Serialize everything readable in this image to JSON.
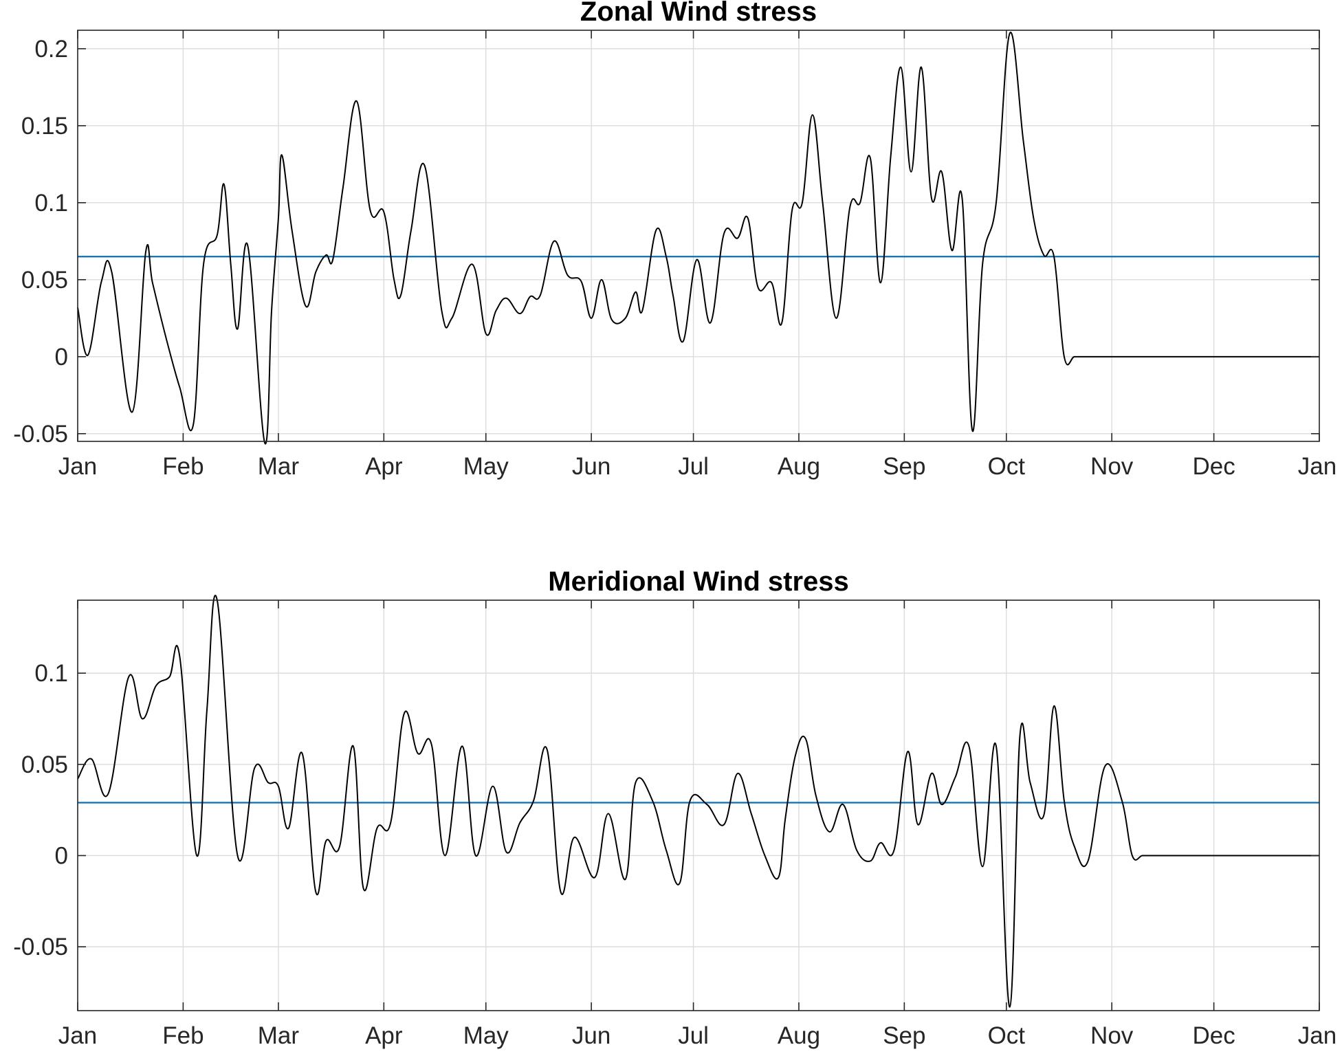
{
  "chart_data": [
    {
      "type": "line",
      "title": "Zonal Wind stress",
      "xlabel": "",
      "ylabel": "",
      "xlim": [
        0,
        365
      ],
      "ylim": [
        -0.055,
        0.212
      ],
      "xticks": [
        0,
        31,
        59,
        90,
        120,
        151,
        181,
        212,
        243,
        273,
        304,
        334,
        365
      ],
      "xtick_labels": [
        "Jan",
        "Feb",
        "Mar",
        "Apr",
        "May",
        "Jun",
        "Jul",
        "Aug",
        "Sep",
        "Oct",
        "Nov",
        "Dec",
        "Jan"
      ],
      "yticks": [
        -0.05,
        0,
        0.05,
        0.1,
        0.15,
        0.2
      ],
      "ytick_labels": [
        "-0.05",
        "0",
        "0.05",
        "0.1",
        "0.15",
        "0.2"
      ],
      "grid": true,
      "mean_value": 0.065,
      "mean_color": "#0072bd",
      "line_color": "#000000",
      "series": [
        {
          "x": [
            0,
            3,
            7,
            10,
            16,
            20,
            22,
            26,
            30,
            34,
            37,
            41,
            43,
            45,
            47,
            50,
            55,
            57,
            59,
            60,
            63,
            67,
            70,
            73,
            75,
            78,
            82,
            86,
            90,
            93,
            95,
            98,
            102,
            107,
            110,
            116,
            120,
            123,
            126,
            130,
            133,
            136,
            140,
            144,
            148,
            151,
            154,
            157,
            161,
            164,
            166,
            170,
            173,
            175,
            178,
            182,
            186,
            190,
            194,
            197,
            200,
            204,
            207,
            210,
            213,
            216,
            219,
            223,
            227,
            230,
            233,
            236,
            239,
            242,
            245,
            248,
            251,
            254,
            257,
            260,
            263,
            266,
            270,
            274,
            278,
            281,
            284,
            287,
            290,
            293,
            296,
            300,
            303,
            305,
            308,
            311,
            313,
            315,
            317,
            319,
            321,
            323,
            325,
            328,
            331,
            334,
            337,
            341,
            346,
            350,
            355,
            360,
            365
          ],
          "y": [
            0.032,
            0.001,
            0.049,
            0.055,
            -0.036,
            0.068,
            0.048,
            0.012,
            -0.02,
            -0.044,
            0.06,
            0.079,
            0.112,
            0.06,
            0.018,
            0.072,
            -0.056,
            0.03,
            0.09,
            0.131,
            0.082,
            0.033,
            0.055,
            0.066,
            0.063,
            0.11,
            0.166,
            0.095,
            0.094,
            0.05,
            0.04,
            0.082,
            0.124,
            0.03,
            0.025,
            0.06,
            0.015,
            0.03,
            0.038,
            0.028,
            0.039,
            0.04,
            0.075,
            0.053,
            0.049,
            0.025,
            0.05,
            0.024,
            0.025,
            0.042,
            0.03,
            0.082,
            0.065,
            0.04,
            0.01,
            0.063,
            0.022,
            0.08,
            0.077,
            0.09,
            0.045,
            0.048,
            0.022,
            0.095,
            0.1,
            0.157,
            0.1,
            0.025,
            0.097,
            0.1,
            0.129,
            0.048,
            0.13,
            0.188,
            0.12,
            0.188,
            0.103,
            0.12,
            0.069,
            0.103,
            -0.048,
            0.06,
            0.1,
            0.21,
            0.14,
            0.09,
            0.066,
            0.065,
            0.0,
            0.0,
            0.0,
            0.0,
            0.0,
            0.0,
            0.0,
            0.0,
            0.0,
            0.0,
            0.0,
            0.0,
            0.0,
            0.0,
            0.0,
            0.0,
            0.0,
            0.0,
            0.0,
            0.0,
            0.0,
            0.0,
            0.0,
            0.0,
            0.0
          ]
        }
      ]
    },
    {
      "type": "line",
      "title": "Meridional Wind stress",
      "xlabel": "",
      "ylabel": "",
      "xlim": [
        0,
        365
      ],
      "ylim": [
        -0.085,
        0.14
      ],
      "xticks": [
        0,
        31,
        59,
        90,
        120,
        151,
        181,
        212,
        243,
        273,
        304,
        334,
        365
      ],
      "xtick_labels": [
        "Jan",
        "Feb",
        "Mar",
        "Apr",
        "May",
        "Jun",
        "Jul",
        "Aug",
        "Sep",
        "Oct",
        "Nov",
        "Dec",
        "Jan"
      ],
      "yticks": [
        -0.05,
        0,
        0.05,
        0.1
      ],
      "ytick_labels": [
        "-0.05",
        "0",
        "0.05",
        "0.1"
      ],
      "grid": true,
      "mean_value": 0.029,
      "mean_color": "#0072bd",
      "line_color": "#000000",
      "series": [
        {
          "x": [
            0,
            4,
            9,
            15,
            19,
            23,
            27,
            30,
            35,
            38,
            41,
            47,
            52,
            56,
            59,
            62,
            66,
            70,
            73,
            77,
            81,
            84,
            88,
            92,
            96,
            100,
            104,
            108,
            113,
            117,
            122,
            126,
            130,
            134,
            138,
            142,
            146,
            152,
            156,
            161,
            164,
            169,
            173,
            177,
            180,
            185,
            190,
            194,
            198,
            202,
            206,
            208,
            211,
            214,
            217,
            221,
            225,
            229,
            233,
            236,
            240,
            244,
            247,
            251,
            254,
            258,
            262,
            266,
            270,
            274,
            277,
            280,
            284,
            287,
            290,
            293,
            297,
            302,
            307,
            310,
            313,
            316,
            320,
            324,
            328,
            331,
            333,
            337,
            341,
            346,
            350,
            355,
            360,
            365
          ],
          "y": [
            0.042,
            0.053,
            0.034,
            0.098,
            0.075,
            0.093,
            0.098,
            0.109,
            0.0,
            0.08,
            0.14,
            0.0,
            0.048,
            0.04,
            0.038,
            0.015,
            0.056,
            -0.02,
            0.008,
            0.005,
            0.06,
            -0.018,
            0.015,
            0.018,
            0.078,
            0.056,
            0.061,
            0.0,
            0.06,
            0.0,
            0.038,
            0.002,
            0.018,
            0.03,
            0.058,
            -0.02,
            0.01,
            -0.012,
            0.023,
            -0.013,
            0.04,
            0.03,
            0.003,
            -0.015,
            0.03,
            0.028,
            0.017,
            0.045,
            0.023,
            0.0,
            -0.012,
            0.02,
            0.055,
            0.064,
            0.033,
            0.013,
            0.028,
            0.003,
            -0.003,
            0.007,
            0.003,
            0.057,
            0.017,
            0.045,
            0.028,
            0.043,
            0.06,
            -0.006,
            0.06,
            -0.083,
            0.066,
            0.04,
            0.022,
            0.082,
            0.03,
            0.005,
            -0.003,
            0.049,
            0.03,
            0.0,
            0.0,
            0.0,
            0.0,
            0.0,
            0.0,
            0.0,
            0.0,
            0.0,
            0.0,
            0.0,
            0.0,
            0.0,
            0.0,
            0.0
          ]
        }
      ]
    }
  ]
}
